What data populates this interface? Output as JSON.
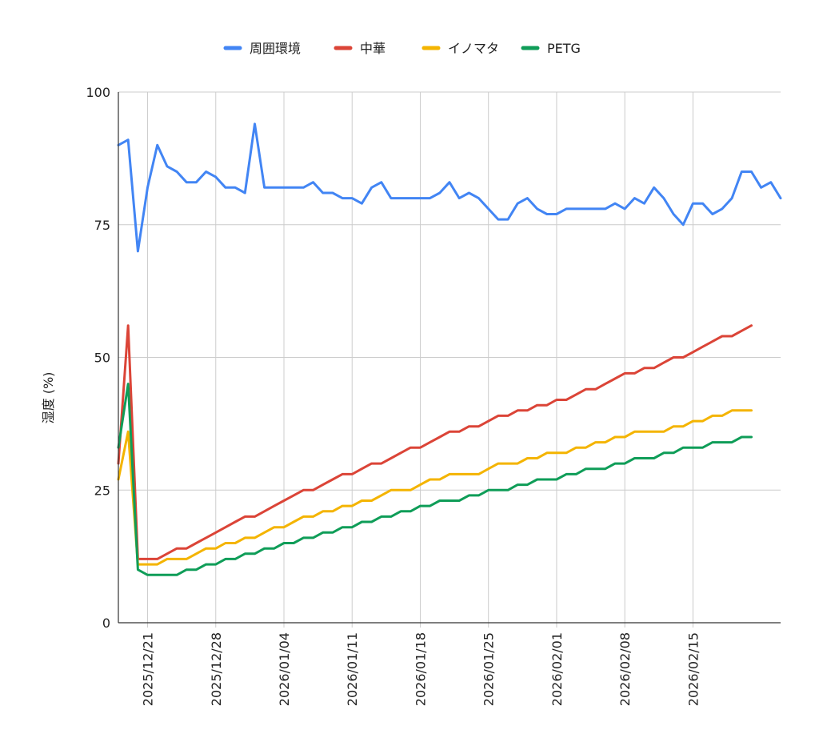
{
  "chart_data": {
    "type": "line",
    "title": "",
    "xlabel": "",
    "ylabel": "湿度 (%)",
    "ylim": [
      0,
      100
    ],
    "yticks": [
      "0",
      "25",
      "50",
      "75",
      "100"
    ],
    "x_start": "2025/12/18",
    "xticks": [
      "2025/12/21",
      "2025/12/28",
      "2026/01/04",
      "2026/01/11",
      "2026/01/18",
      "2026/01/25",
      "2026/02/01",
      "2026/02/08",
      "2026/02/15"
    ],
    "grid": true,
    "legend_position": "top",
    "series": [
      {
        "name": "周囲環境",
        "color": "#4285f4",
        "values": [
          90,
          91,
          70,
          82,
          90,
          86,
          85,
          83,
          83,
          85,
          84,
          82,
          82,
          81,
          94,
          82,
          82,
          82,
          82,
          82,
          83,
          81,
          81,
          80,
          80,
          79,
          82,
          83,
          80,
          80,
          80,
          80,
          80,
          81,
          83,
          80,
          81,
          80,
          78,
          76,
          76,
          79,
          80,
          78,
          77,
          77,
          78,
          78,
          78,
          78,
          78,
          79,
          78,
          80,
          79,
          82,
          80,
          77,
          75,
          79,
          79,
          77,
          78,
          80,
          85,
          85,
          82,
          83,
          80
        ]
      },
      {
        "name": "中華",
        "color": "#db4437",
        "values": [
          30,
          56,
          12,
          12,
          12,
          13,
          14,
          14,
          15,
          16,
          17,
          18,
          19,
          20,
          20,
          21,
          22,
          23,
          24,
          25,
          25,
          26,
          27,
          28,
          28,
          29,
          30,
          30,
          31,
          32,
          33,
          33,
          34,
          35,
          36,
          36,
          37,
          37,
          38,
          39,
          39,
          40,
          40,
          41,
          41,
          42,
          42,
          43,
          44,
          44,
          45,
          46,
          47,
          47,
          48,
          48,
          49,
          50,
          50,
          51,
          52,
          53,
          54,
          54,
          55,
          56
        ]
      },
      {
        "name": "イノマタ",
        "color": "#f4b400",
        "values": [
          27,
          36,
          11,
          11,
          11,
          12,
          12,
          12,
          13,
          14,
          14,
          15,
          15,
          16,
          16,
          17,
          18,
          18,
          19,
          20,
          20,
          21,
          21,
          22,
          22,
          23,
          23,
          24,
          25,
          25,
          25,
          26,
          27,
          27,
          28,
          28,
          28,
          28,
          29,
          30,
          30,
          30,
          31,
          31,
          32,
          32,
          32,
          33,
          33,
          34,
          34,
          35,
          35,
          36,
          36,
          36,
          36,
          37,
          37,
          38,
          38,
          39,
          39,
          40,
          40,
          40
        ]
      },
      {
        "name": "PETG",
        "color": "#0f9d58",
        "values": [
          33,
          45,
          10,
          9,
          9,
          9,
          9,
          10,
          10,
          11,
          11,
          12,
          12,
          13,
          13,
          14,
          14,
          15,
          15,
          16,
          16,
          17,
          17,
          18,
          18,
          19,
          19,
          20,
          20,
          21,
          21,
          22,
          22,
          23,
          23,
          23,
          24,
          24,
          25,
          25,
          25,
          26,
          26,
          27,
          27,
          27,
          28,
          28,
          29,
          29,
          29,
          30,
          30,
          31,
          31,
          31,
          32,
          32,
          33,
          33,
          33,
          34,
          34,
          34,
          35,
          35
        ]
      }
    ]
  }
}
